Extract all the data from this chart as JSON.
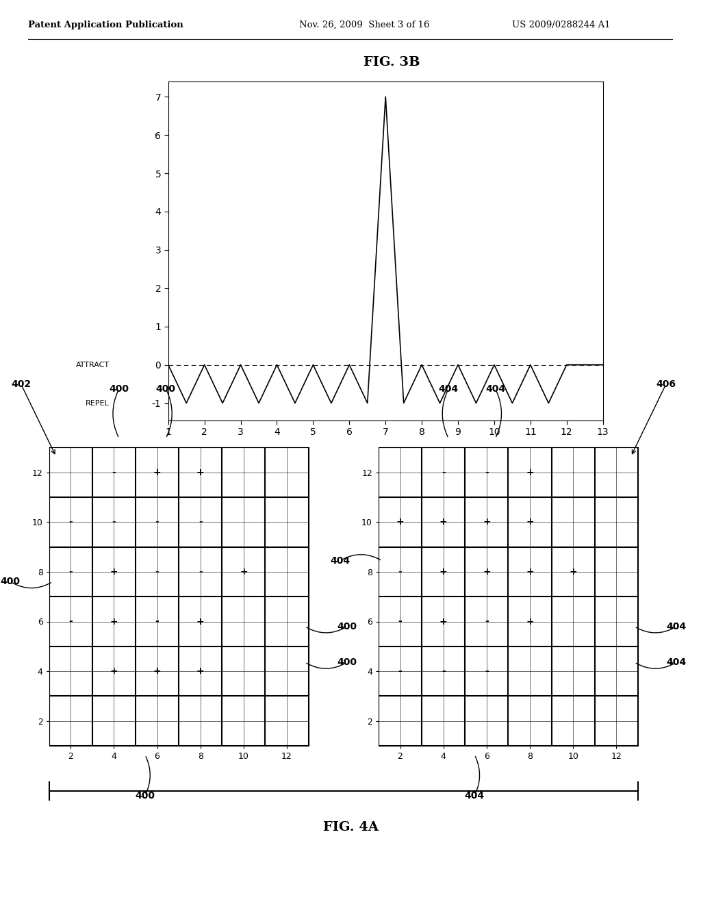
{
  "title_fig3b": "FIG. 3B",
  "title_fig4a": "FIG. 4A",
  "header_left": "Patent Application Publication",
  "header_mid": "Nov. 26, 2009  Sheet 3 of 16",
  "header_right": "US 2009/0288244 A1",
  "attract_label": "ATTRACT",
  "repel_label": "REPEL",
  "left_signs": {
    "4,12": "-",
    "6,12": "+",
    "8,12": "+",
    "2,10": "-",
    "4,10": "-",
    "6,10": "-",
    "8,10": "-",
    "2,8": "-",
    "4,8": "+",
    "6,8": "-",
    "8,8": "-",
    "10,8": "+",
    "2,6": "-",
    "4,6": "+",
    "6,6": "-",
    "8,6": "+",
    "4,4": "+",
    "6,4": "+",
    "8,4": "+"
  },
  "right_signs": {
    "4,12": "-",
    "6,12": "-",
    "8,12": "+",
    "2,10": "+",
    "4,10": "+",
    "6,10": "+",
    "8,10": "+",
    "2,8": "-",
    "4,8": "+",
    "6,8": "+",
    "8,8": "+",
    "10,8": "+",
    "2,6": "-",
    "4,6": "+",
    "6,6": "-",
    "8,6": "+",
    "2,4": "-",
    "4,4": "-",
    "6,4": "-"
  }
}
